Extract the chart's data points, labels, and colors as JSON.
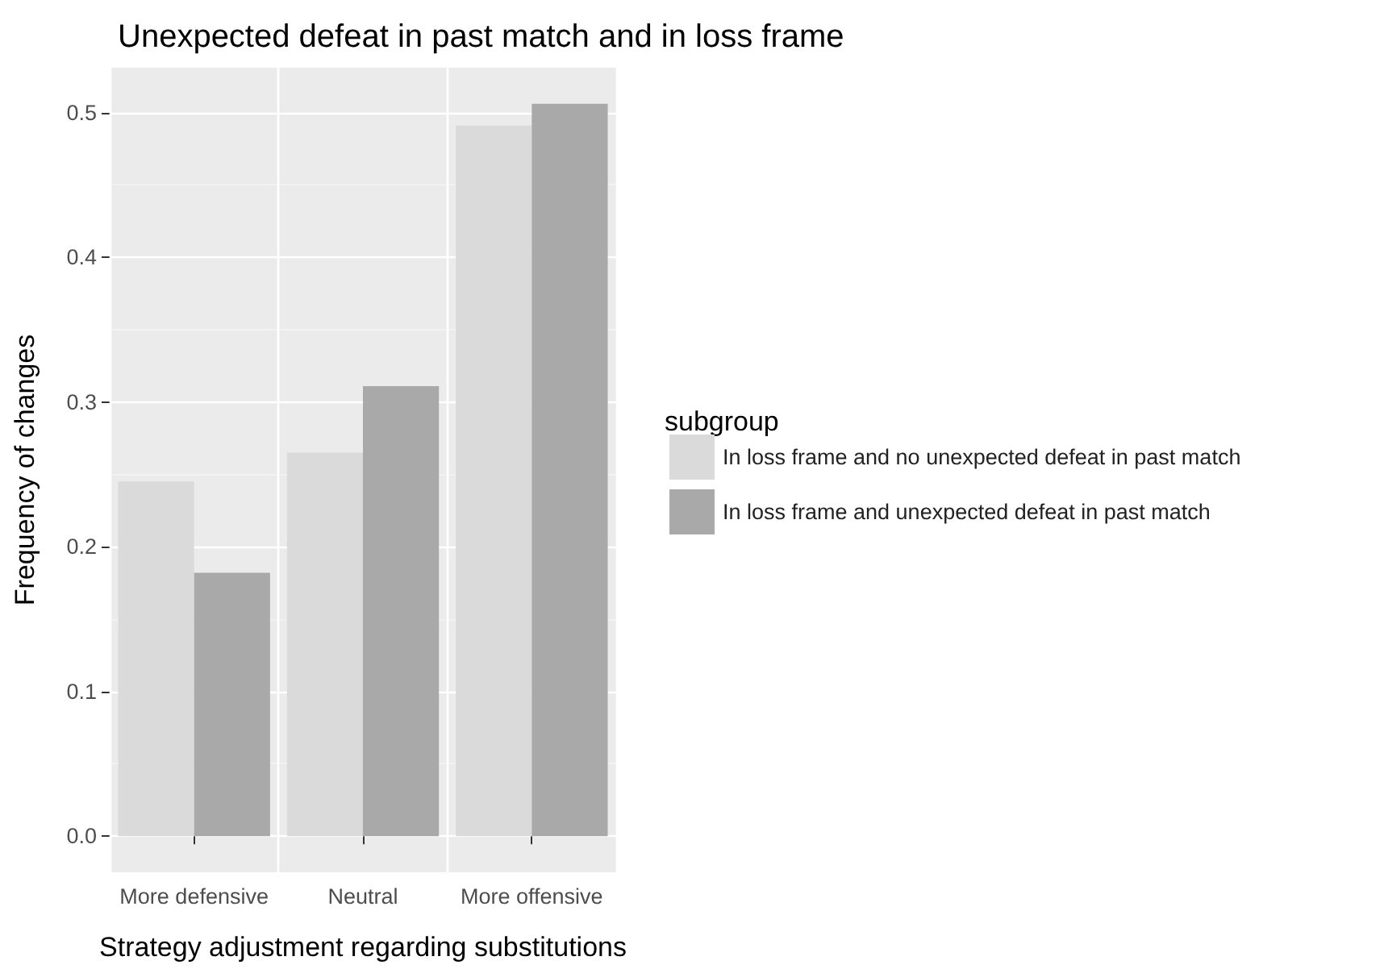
{
  "chart_data": {
    "type": "bar",
    "title": "Unexpected defeat in past match and in loss frame",
    "xlabel": "Strategy adjustment regarding substitutions",
    "ylabel": "Frequency of changes",
    "legend_title": "subgroup",
    "categories": [
      "More defensive",
      "Neutral",
      "More offensive"
    ],
    "series": [
      {
        "name": "In loss frame and no unexpected defeat in past match",
        "color": "#dadada",
        "values": [
          0.245,
          0.265,
          0.491
        ]
      },
      {
        "name": "In loss frame and unexpected defeat in past match",
        "color": "#a9a9a9",
        "values": [
          0.182,
          0.311,
          0.506
        ]
      }
    ],
    "ylim": [
      -0.025,
      0.531
    ],
    "yticks": [
      {
        "value": 0,
        "label": "0.0"
      },
      0.1,
      0.2,
      0.3,
      0.4,
      0.5
    ],
    "grid": true,
    "legend": "right"
  }
}
